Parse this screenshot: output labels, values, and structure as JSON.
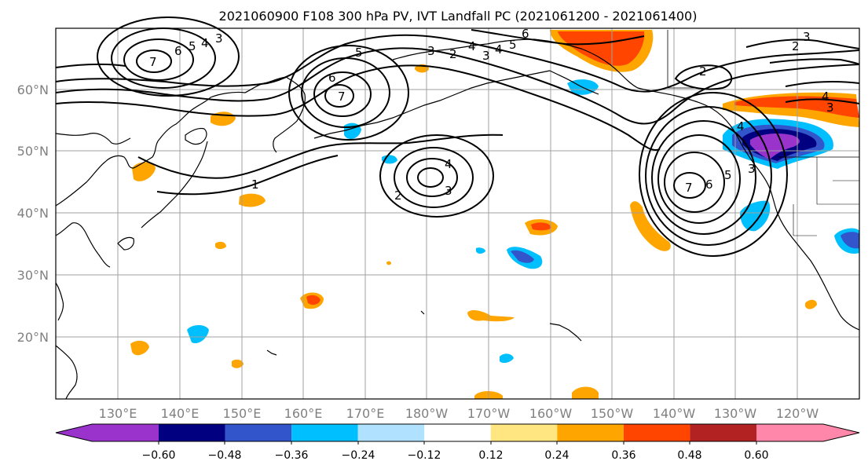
{
  "title": "2021060900 F108 300 hPa PV, IVT Landfall PC (2021061200 - 2021061400)",
  "lat_labels": [
    "60°N",
    "50°N",
    "40°N",
    "30°N",
    "20°N"
  ],
  "lon_labels": [
    "130°E",
    "140°E",
    "150°E",
    "160°E",
    "170°E",
    "180°W",
    "170°W",
    "160°W",
    "150°W",
    "140°W",
    "130°W",
    "120°W"
  ],
  "colorbar": {
    "tick_labels": [
      "−0.60",
      "−0.48",
      "−0.36",
      "−0.24",
      "−0.12",
      "0.12",
      "0.24",
      "0.36",
      "0.48",
      "0.60"
    ],
    "colors": [
      "#9933cc",
      "#000080",
      "#3355cc",
      "#00bfff",
      "#b0e2ff",
      "#ffffff",
      "#ffe680",
      "#ffa500",
      "#ff4500",
      "#b22222",
      "#ff88aa"
    ]
  },
  "contour_labels": [
    "7",
    "6",
    "5",
    "4",
    "3",
    "6",
    "7",
    "5",
    "4",
    "3",
    "6",
    "5",
    "4",
    "3",
    "2",
    "1",
    "4",
    "3",
    "2",
    "7",
    "6",
    "5",
    "4",
    "3",
    "2",
    "4",
    "3",
    "2",
    "3"
  ],
  "colors": {
    "contour": "#000000",
    "gridline": "#a0a0a0",
    "coast": "#000000"
  }
}
